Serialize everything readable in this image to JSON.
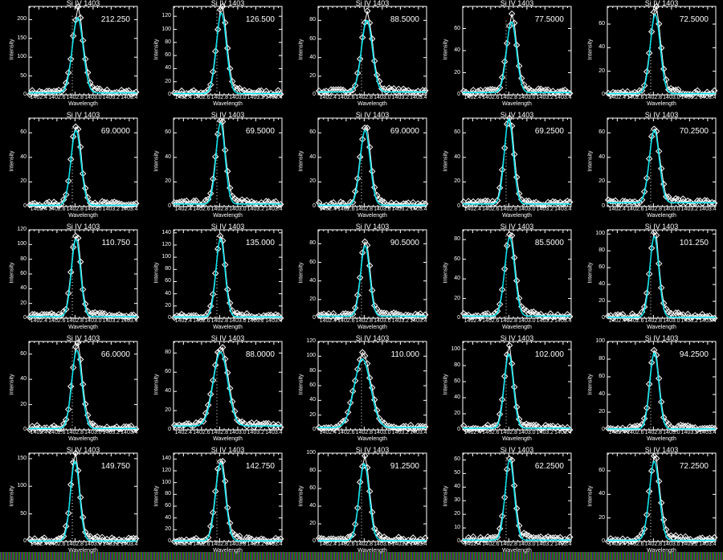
{
  "chart_data": {
    "type": "line",
    "title": "Si IV 1403",
    "xlabel": "Wavelength",
    "ylabel": "Intensity",
    "xlim": [
      1402.29,
      1403.49
    ],
    "xticks": [
      "1402.4",
      "1402.6",
      "1402.8",
      "1403.0",
      "1403.2",
      "1403.4"
    ],
    "rest_wavelength": 1402.77,
    "colors": {
      "observed": "#ffffff",
      "fit": "#00e5ee",
      "background": "#000000"
    },
    "markers": "diamond",
    "panels": [
      {
        "label": "212.250",
        "ylim": [
          0,
          235
        ],
        "yticks": [
          0,
          50,
          100,
          150,
          200
        ],
        "fit": {
          "peak": 200,
          "center": 1402.83,
          "sigma": 0.06,
          "background": 5
        }
      },
      {
        "label": "126.500",
        "ylim": [
          0,
          135
        ],
        "yticks": [
          0,
          20,
          40,
          60,
          80,
          100,
          120
        ],
        "fit": {
          "peak": 123,
          "center": 1402.82,
          "sigma": 0.055,
          "background": 2
        }
      },
      {
        "label": "88.5000",
        "ylim": [
          0,
          95
        ],
        "yticks": [
          0,
          20,
          40,
          60,
          80
        ],
        "fit": {
          "peak": 77,
          "center": 1402.83,
          "sigma": 0.06,
          "background": 3
        }
      },
      {
        "label": "77.5000",
        "ylim": [
          0,
          80
        ],
        "yticks": [
          0,
          20,
          40,
          60
        ],
        "fit": {
          "peak": 64,
          "center": 1402.83,
          "sigma": 0.055,
          "background": 2
        }
      },
      {
        "label": "72.5000",
        "ylim": [
          0,
          75
        ],
        "yticks": [
          0,
          20,
          40,
          60
        ],
        "fit": {
          "peak": 67,
          "center": 1402.82,
          "sigma": 0.055,
          "background": 1
        }
      },
      {
        "label": "69.0000",
        "ylim": [
          0,
          72
        ],
        "yticks": [
          0,
          20,
          40,
          60
        ],
        "fit": {
          "peak": 61,
          "center": 1402.81,
          "sigma": 0.055,
          "background": 1
        }
      },
      {
        "label": "69.5000",
        "ylim": [
          0,
          72
        ],
        "yticks": [
          0,
          20,
          40,
          60
        ],
        "fit": {
          "peak": 66,
          "center": 1402.81,
          "sigma": 0.05,
          "background": 2
        }
      },
      {
        "label": "69.0000",
        "ylim": [
          0,
          72
        ],
        "yticks": [
          0,
          20,
          40,
          60
        ],
        "fit": {
          "peak": 61,
          "center": 1402.81,
          "sigma": 0.055,
          "background": 1
        }
      },
      {
        "label": "69.2500",
        "ylim": [
          0,
          72
        ],
        "yticks": [
          0,
          20,
          40,
          60
        ],
        "fit": {
          "peak": 69,
          "center": 1402.8,
          "sigma": 0.05,
          "background": 2
        }
      },
      {
        "label": "70.2500",
        "ylim": [
          0,
          72
        ],
        "yticks": [
          0,
          20,
          40,
          60
        ],
        "fit": {
          "peak": 59,
          "center": 1402.81,
          "sigma": 0.055,
          "background": 3
        }
      },
      {
        "label": "110.750",
        "ylim": [
          0,
          120
        ],
        "yticks": [
          0,
          20,
          40,
          60,
          80,
          100,
          120
        ],
        "fit": {
          "peak": 105,
          "center": 1402.81,
          "sigma": 0.05,
          "background": 2
        }
      },
      {
        "label": "135.000",
        "ylim": [
          0,
          145
        ],
        "yticks": [
          0,
          20,
          40,
          60,
          80,
          100,
          120,
          140
        ],
        "fit": {
          "peak": 128,
          "center": 1402.81,
          "sigma": 0.05,
          "background": 2
        }
      },
      {
        "label": "90.5000",
        "ylim": [
          0,
          95
        ],
        "yticks": [
          0,
          20,
          40,
          60,
          80
        ],
        "fit": {
          "peak": 76,
          "center": 1402.81,
          "sigma": 0.05,
          "background": 2
        }
      },
      {
        "label": "85.5000",
        "ylim": [
          0,
          90
        ],
        "yticks": [
          0,
          20,
          40,
          60,
          80
        ],
        "fit": {
          "peak": 80,
          "center": 1402.81,
          "sigma": 0.055,
          "background": 2
        }
      },
      {
        "label": "101.250",
        "ylim": [
          0,
          105
        ],
        "yticks": [
          0,
          20,
          40,
          60,
          80,
          100
        ],
        "fit": {
          "peak": 96,
          "center": 1402.81,
          "sigma": 0.05,
          "background": 1
        }
      },
      {
        "label": "66.0000",
        "ylim": [
          0,
          70
        ],
        "yticks": [
          0,
          20,
          40,
          60
        ],
        "fit": {
          "peak": 62,
          "center": 1402.82,
          "sigma": 0.055,
          "background": 1
        }
      },
      {
        "label": "88.0000",
        "ylim": [
          0,
          92
        ],
        "yticks": [
          0,
          20,
          40,
          60,
          80
        ],
        "fit": {
          "peak": 77,
          "center": 1402.81,
          "sigma": 0.08,
          "background": 4
        }
      },
      {
        "label": "110.000",
        "ylim": [
          0,
          120
        ],
        "yticks": [
          0,
          20,
          40,
          60,
          80,
          100,
          120
        ],
        "fit": {
          "peak": 93,
          "center": 1402.78,
          "sigma": 0.09,
          "background": 3
        }
      },
      {
        "label": "102.000",
        "ylim": [
          0,
          110
        ],
        "yticks": [
          0,
          20,
          40,
          60,
          80,
          100
        ],
        "fit": {
          "peak": 92,
          "center": 1402.8,
          "sigma": 0.05,
          "background": 2
        }
      },
      {
        "label": "94.2500",
        "ylim": [
          0,
          100
        ],
        "yticks": [
          0,
          20,
          40,
          60,
          80,
          100
        ],
        "fit": {
          "peak": 86,
          "center": 1402.81,
          "sigma": 0.05,
          "background": 1
        }
      },
      {
        "label": "149.750",
        "ylim": [
          0,
          160
        ],
        "yticks": [
          0,
          50,
          100,
          150
        ],
        "fit": {
          "peak": 144,
          "center": 1402.8,
          "sigma": 0.05,
          "background": 1
        }
      },
      {
        "label": "142.750",
        "ylim": [
          0,
          150
        ],
        "yticks": [
          0,
          20,
          40,
          60,
          80,
          100,
          120,
          140
        ],
        "fit": {
          "peak": 132,
          "center": 1402.81,
          "sigma": 0.055,
          "background": 1
        }
      },
      {
        "label": "91.2500",
        "ylim": [
          0,
          100
        ],
        "yticks": [
          0,
          20,
          40,
          60,
          80,
          100
        ],
        "fit": {
          "peak": 87,
          "center": 1402.8,
          "sigma": 0.055,
          "background": 1
        }
      },
      {
        "label": "62.2500",
        "ylim": [
          0,
          65
        ],
        "yticks": [
          0,
          10,
          20,
          30,
          40,
          50,
          60
        ],
        "fit": {
          "peak": 59,
          "center": 1402.81,
          "sigma": 0.05,
          "background": 1
        }
      },
      {
        "label": "72.2500",
        "ylim": [
          0,
          75
        ],
        "yticks": [
          0,
          20,
          40,
          60
        ],
        "fit": {
          "peak": 67,
          "center": 1402.81,
          "sigma": 0.055,
          "background": 1
        }
      }
    ]
  }
}
